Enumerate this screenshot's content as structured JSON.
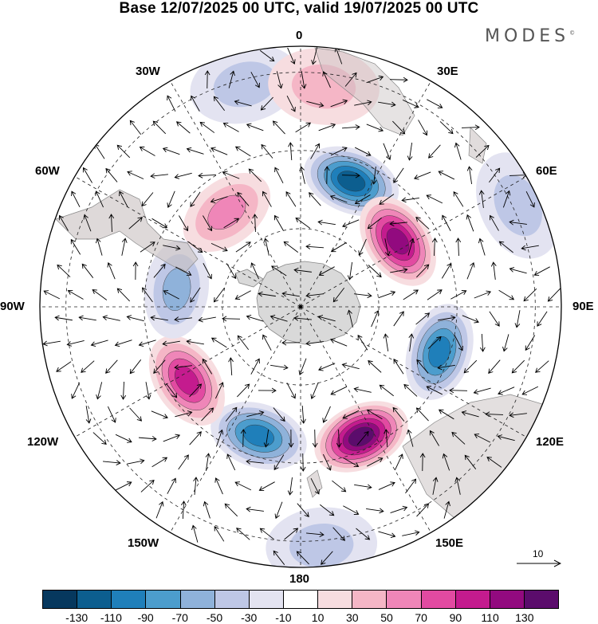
{
  "title": "Base 12/07/2025 00 UTC, valid 19/07/2025 00 UTC",
  "brand": {
    "text": "MODES",
    "mark": "©"
  },
  "longitude_labels": {
    "top": "0",
    "e30": "30E",
    "e60": "60E",
    "e90": "90E",
    "e120": "120E",
    "e150": "150E",
    "bottom": "180",
    "w150": "150W",
    "w120": "120W",
    "w90": "90W",
    "w60": "60W",
    "w30": "30W"
  },
  "vector_reference": {
    "value": "10"
  },
  "colorbar": {
    "colors": [
      "#06385e",
      "#0c5e8f",
      "#1f7fba",
      "#4c9dcd",
      "#8fb2da",
      "#bec7e6",
      "#e3e3f1",
      "#ffffff",
      "#f7dde0",
      "#f5b6c6",
      "#ef86b8",
      "#e24aa1",
      "#c41b8e",
      "#920a7f",
      "#5b0c6c"
    ],
    "tick_labels": [
      "-130",
      "-110",
      "-90",
      "-70",
      "-50",
      "-30",
      "-10",
      "10",
      "30",
      "50",
      "70",
      "90",
      "110",
      "130"
    ]
  },
  "anomalies": [
    {
      "lon": 22,
      "r": 0.52,
      "v": -110
    },
    {
      "lon": 56,
      "r": 0.45,
      "v": 110
    },
    {
      "lon": 65,
      "r": 0.92,
      "v": -40
    },
    {
      "lon": 108,
      "r": 0.56,
      "v": -90
    },
    {
      "lon": 155,
      "r": 0.55,
      "v": 125
    },
    {
      "lon": 198,
      "r": 0.52,
      "v": -100
    },
    {
      "lon": 237,
      "r": 0.52,
      "v": 100
    },
    {
      "lon": 278,
      "r": 0.48,
      "v": -60
    },
    {
      "lon": 322,
      "r": 0.46,
      "v": 50
    },
    {
      "lon": 346,
      "r": 0.88,
      "v": -40
    },
    {
      "lon": 6,
      "r": 0.85,
      "v": 25
    },
    {
      "lon": 175,
      "r": 0.92,
      "v": -25
    }
  ]
}
